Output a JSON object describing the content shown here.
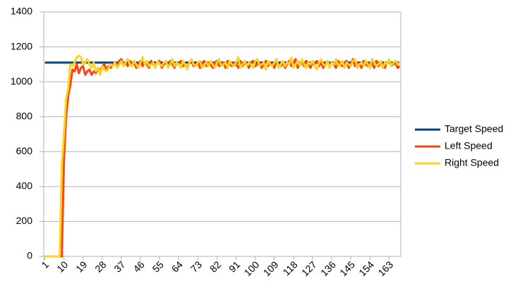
{
  "chart_data": {
    "type": "line",
    "categories": [
      1,
      null,
      null,
      null,
      null,
      null,
      null,
      null,
      null,
      10,
      null,
      null,
      null,
      null,
      null,
      null,
      null,
      null,
      19,
      null,
      null,
      null,
      null,
      null,
      null,
      null,
      null,
      28,
      null,
      null,
      null,
      null,
      null,
      null,
      null,
      null,
      37,
      null,
      null,
      null,
      null,
      null,
      null,
      null,
      null,
      46,
      null,
      null,
      null,
      null,
      null,
      null,
      null,
      null,
      55,
      null,
      null,
      null,
      null,
      null,
      null,
      null,
      null,
      64,
      null,
      null,
      null,
      null,
      null,
      null,
      null,
      null,
      73,
      null,
      null,
      null,
      null,
      null,
      null,
      null,
      null,
      82,
      null,
      null,
      null,
      null,
      null,
      null,
      null,
      null,
      91,
      null,
      null,
      null,
      null,
      null,
      null,
      null,
      null,
      100,
      null,
      null,
      null,
      null,
      null,
      null,
      null,
      null,
      109,
      null,
      null,
      null,
      null,
      null,
      null,
      null,
      null,
      118,
      null,
      null,
      null,
      null,
      null,
      null,
      null,
      null,
      127,
      null,
      null,
      null,
      null,
      null,
      null,
      null,
      null,
      136,
      null,
      null,
      null,
      null,
      null,
      null,
      null,
      null,
      145,
      null,
      null,
      null,
      null,
      null,
      null,
      null,
      null,
      154,
      null,
      null,
      null,
      null,
      null,
      null,
      null,
      null,
      163,
      null,
      null,
      null,
      null,
      null
    ],
    "series": [
      {
        "name": "Target Speed",
        "color": "#004586",
        "values": [
          1110,
          1110,
          1110,
          1110,
          1110,
          1110,
          1110,
          1110,
          1110,
          1110,
          1110,
          1110,
          1110,
          1110,
          1110,
          1110,
          1110,
          1110,
          1110,
          1110,
          1110,
          1110,
          1110,
          1110,
          1110,
          1110,
          1110,
          1110,
          1110,
          1110,
          1110,
          1110,
          1110,
          1110,
          1110,
          1110,
          1110,
          1110,
          1110,
          1110,
          1110,
          1110,
          1110,
          1110,
          1110,
          1110,
          1110,
          1110,
          1110,
          1110,
          1110,
          1110,
          1110,
          1110,
          1110,
          1110,
          1110,
          1110,
          1110,
          1110,
          1110,
          1110,
          1110,
          1110,
          1110,
          1110,
          1110,
          1110,
          1110,
          1110,
          1110,
          1110,
          1110,
          1110,
          1110,
          1110,
          1110,
          1110,
          1110,
          1110,
          1110,
          1110,
          1110,
          1110,
          1110,
          1110,
          1110,
          1110,
          1110,
          1110,
          1110,
          1110,
          1110,
          1110,
          1110,
          1110,
          1110,
          1110,
          1110,
          1110,
          1110,
          1110,
          1110,
          1110,
          1110,
          1110,
          1110,
          1110,
          1110,
          1110,
          1110,
          1110,
          1110,
          1110,
          1110,
          1110,
          1110,
          1110,
          1110,
          1110,
          1110,
          1110,
          1110,
          1110,
          1110,
          1110,
          1110,
          1110,
          1110,
          1110,
          1110,
          1110,
          1110,
          1110,
          1110,
          1110,
          1110,
          1110,
          1110,
          1110,
          1110,
          1110,
          1110,
          1110,
          1110,
          1110,
          1110,
          1110,
          1110,
          1110,
          1110,
          1110,
          1110,
          1110,
          1110,
          1110,
          1110,
          1110,
          1110,
          1110,
          1110,
          1110,
          1110,
          1110,
          1110,
          1110,
          1110,
          1110
        ]
      },
      {
        "name": "Left Speed",
        "color": "#ff420e",
        "values": [
          0,
          0,
          0,
          0,
          0,
          0,
          0,
          0,
          0,
          550,
          800,
          920,
          980,
          1070,
          1060,
          1100,
          1050,
          1080,
          1090,
          1040,
          1060,
          1070,
          1040,
          1060,
          1050,
          1080,
          1060,
          1090,
          1100,
          1070,
          1090,
          1080,
          1100,
          1110,
          1090,
          1120,
          1130,
          1100,
          1110,
          1090,
          1120,
          1100,
          1110,
          1080,
          1100,
          1120,
          1090,
          1110,
          1100,
          1080,
          1120,
          1100,
          1090,
          1110,
          1120,
          1080,
          1100,
          1110,
          1090,
          1120,
          1100,
          1080,
          1110,
          1100,
          1120,
          1090,
          1100,
          1080,
          1110,
          1120,
          1090,
          1100,
          1110,
          1080,
          1100,
          1120,
          1090,
          1110,
          1100,
          1080,
          1110,
          1120,
          1090,
          1100,
          1110,
          1080,
          1120,
          1100,
          1090,
          1110,
          1100,
          1080,
          1120,
          1090,
          1110,
          1100,
          1080,
          1110,
          1120,
          1090,
          1100,
          1110,
          1080,
          1100,
          1120,
          1090,
          1110,
          1100,
          1080,
          1120,
          1100,
          1090,
          1110,
          1080,
          1100,
          1120,
          1090,
          1110,
          1130,
          1080,
          1100,
          1110,
          1090,
          1120,
          1100,
          1080,
          1110,
          1100,
          1120,
          1090,
          1110,
          1080,
          1100,
          1120,
          1090,
          1110,
          1100,
          1080,
          1120,
          1100,
          1090,
          1110,
          1120,
          1080,
          1100,
          1130,
          1090,
          1110,
          1100,
          1080,
          1120,
          1100,
          1090,
          1110,
          1100,
          1080,
          1120,
          1090,
          1110,
          1100,
          1080,
          1110,
          1120,
          1090,
          1100,
          1110,
          1080,
          1090
        ]
      },
      {
        "name": "Right Speed",
        "color": "#ffd320",
        "values": [
          0,
          0,
          0,
          0,
          0,
          0,
          0,
          0,
          520,
          700,
          900,
          960,
          1100,
          1090,
          1110,
          1140,
          1150,
          1140,
          1100,
          1110,
          1130,
          1100,
          1080,
          1110,
          1060,
          1080,
          1040,
          1090,
          1070,
          1060,
          1080,
          1100,
          1090,
          1110,
          1080,
          1100,
          1120,
          1090,
          1110,
          1130,
          1100,
          1090,
          1120,
          1100,
          1080,
          1110,
          1140,
          1100,
          1120,
          1090,
          1100,
          1110,
          1080,
          1120,
          1100,
          1090,
          1110,
          1120,
          1080,
          1100,
          1130,
          1090,
          1110,
          1100,
          1080,
          1120,
          1100,
          1070,
          1110,
          1130,
          1100,
          1090,
          1110,
          1120,
          1080,
          1100,
          1110,
          1090,
          1120,
          1100,
          1080,
          1110,
          1130,
          1090,
          1100,
          1110,
          1080,
          1120,
          1100,
          1090,
          1110,
          1140,
          1080,
          1100,
          1120,
          1090,
          1110,
          1100,
          1080,
          1120,
          1130,
          1090,
          1100,
          1110,
          1070,
          1120,
          1100,
          1090,
          1110,
          1130,
          1080,
          1100,
          1120,
          1090,
          1110,
          1100,
          1140,
          1080,
          1100,
          1120,
          1090,
          1130,
          1100,
          1080,
          1110,
          1100,
          1120,
          1090,
          1070,
          1110,
          1130,
          1100,
          1090,
          1120,
          1080,
          1110,
          1100,
          1130,
          1090,
          1100,
          1120,
          1080,
          1110,
          1100,
          1090,
          1120,
          1130,
          1080,
          1100,
          1110,
          1090,
          1120,
          1100,
          1080,
          1130,
          1110,
          1090,
          1100,
          1120,
          1080,
          1110,
          1100,
          1130,
          1090,
          1110,
          1120,
          1100,
          1110
        ]
      }
    ],
    "ylim": [
      0,
      1400
    ],
    "yticks": [
      0,
      200,
      400,
      600,
      800,
      1000,
      1200,
      1400
    ],
    "grid": true,
    "legend": "right"
  }
}
